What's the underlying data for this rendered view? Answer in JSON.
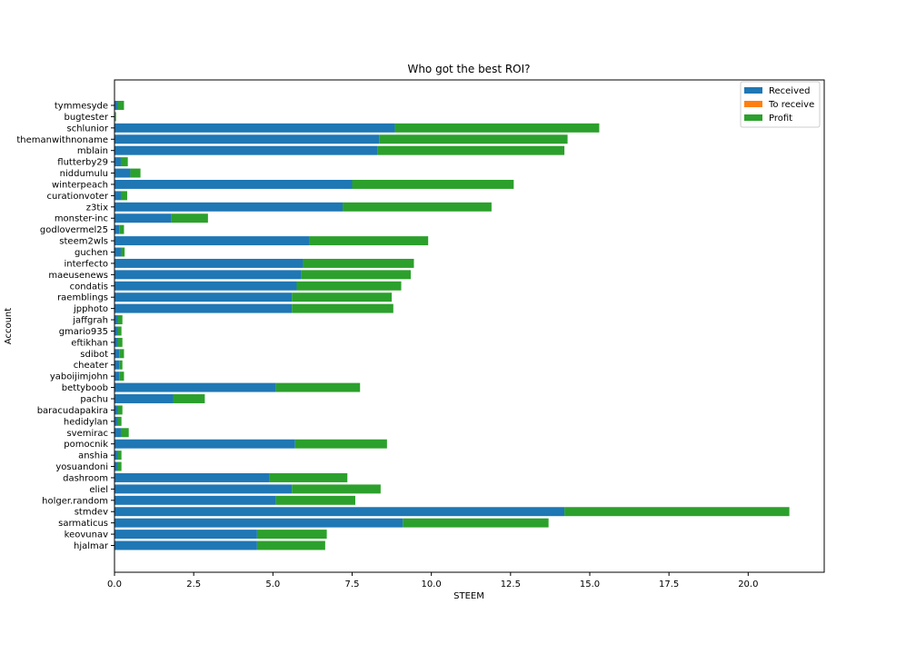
{
  "chart_data": {
    "type": "bar",
    "orientation": "horizontal",
    "stacked": true,
    "title": "Who got the best ROI?",
    "xlabel": "STEEM",
    "ylabel": "Account",
    "xlim": [
      0,
      22.4
    ],
    "xticks": [
      0.0,
      2.5,
      5.0,
      7.5,
      10.0,
      12.5,
      15.0,
      17.5,
      20.0
    ],
    "xtick_labels": [
      "0.0",
      "2.5",
      "5.0",
      "7.5",
      "10.0",
      "12.5",
      "15.0",
      "17.5",
      "20.0"
    ],
    "grid": false,
    "legend_position": "top-right",
    "categories": [
      "hjalmar",
      "keovunav",
      "sarmaticus",
      "stmdev",
      "holger.random",
      "eliel",
      "dashroom",
      "yosuandoni",
      "anshia",
      "pomocnik",
      "svemirac",
      "hedidylan",
      "baracudapakira",
      "pachu",
      "bettyboob",
      "yaboijimjohn",
      "cheater",
      "sdibot",
      "eftikhan",
      "gmario935",
      "jaffgrah",
      "jpphoto",
      "raemblings",
      "condatis",
      "maeusenews",
      "interfecto",
      "guchen",
      "steem2wls",
      "godlovermel25",
      "monster-inc",
      "z3tix",
      "curationvoter",
      "winterpeach",
      "niddumulu",
      "flutterby29",
      "mblain",
      "themanwithnoname",
      "schlunior",
      "bugtester",
      "tymmesyde"
    ],
    "series": [
      {
        "name": "Received",
        "color": "#1f77b4",
        "values": [
          4.5,
          4.5,
          9.1,
          14.2,
          5.1,
          5.6,
          4.9,
          0.1,
          0.1,
          5.7,
          0.2,
          0.1,
          0.1,
          1.85,
          5.1,
          0.15,
          0.15,
          0.15,
          0.1,
          0.1,
          0.1,
          5.6,
          5.6,
          5.75,
          5.9,
          5.95,
          0.2,
          6.15,
          0.15,
          1.8,
          7.2,
          0.2,
          7.5,
          0.5,
          0.2,
          8.3,
          8.35,
          8.85,
          0.02,
          0.1
        ]
      },
      {
        "name": "To receive",
        "color": "#ff7f0e",
        "values": [
          0,
          0,
          0,
          0,
          0,
          0,
          0,
          0,
          0,
          0,
          0,
          0,
          0,
          0,
          0,
          0,
          0,
          0,
          0,
          0,
          0,
          0,
          0,
          0,
          0,
          0,
          0,
          0,
          0,
          0,
          0,
          0,
          0,
          0,
          0,
          0,
          0,
          0,
          0,
          0
        ]
      },
      {
        "name": "Profit",
        "color": "#2ca02c",
        "values": [
          2.15,
          2.2,
          4.6,
          7.1,
          2.5,
          2.8,
          2.45,
          0.12,
          0.12,
          2.9,
          0.25,
          0.12,
          0.15,
          1.0,
          2.65,
          0.15,
          0.1,
          0.15,
          0.15,
          0.12,
          0.15,
          3.2,
          3.15,
          3.3,
          3.45,
          3.5,
          0.12,
          3.75,
          0.15,
          1.15,
          4.7,
          0.2,
          5.1,
          0.32,
          0.22,
          5.9,
          5.95,
          6.45,
          0.03,
          0.2
        ]
      }
    ]
  }
}
